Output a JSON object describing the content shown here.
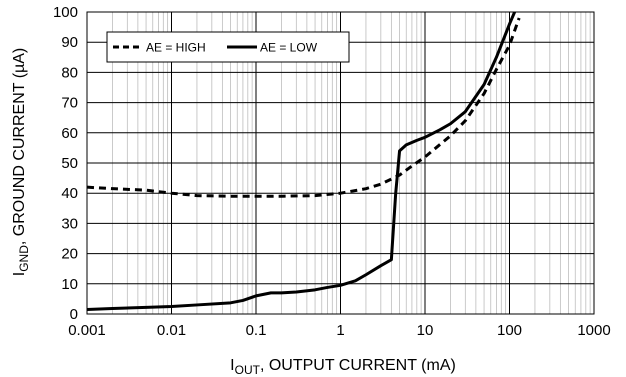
{
  "chart_data": {
    "type": "line",
    "xscale": "log",
    "xlim": [
      0.001,
      1000
    ],
    "ylim": [
      0,
      100
    ],
    "xticks": [
      0.001,
      0.01,
      0.1,
      1,
      10,
      100,
      1000
    ],
    "xtick_labels": [
      "0.001",
      "0.01",
      "0.1",
      "1",
      "10",
      "100",
      "1000"
    ],
    "yticks": [
      0,
      10,
      20,
      30,
      40,
      50,
      60,
      70,
      80,
      90,
      100
    ],
    "ytick_labels": [
      "0",
      "10",
      "20",
      "30",
      "40",
      "50",
      "60",
      "70",
      "80",
      "90",
      "100"
    ],
    "xlabel": {
      "prefix": "I",
      "sub": "OUT",
      "rest": ", OUTPUT CURRENT (mA)"
    },
    "ylabel": {
      "prefix": "I",
      "sub": "GND",
      "rest": ", GROUND CURRENT (µA)"
    },
    "grid": true,
    "legend_position": "top-left",
    "series": [
      {
        "name": "AE = HIGH",
        "style": "dashed",
        "x": [
          0.001,
          0.002,
          0.005,
          0.01,
          0.02,
          0.05,
          0.1,
          0.2,
          0.5,
          1,
          2,
          3,
          5,
          7,
          10,
          20,
          30,
          50,
          70,
          100,
          130
        ],
        "y": [
          42,
          41.5,
          41,
          40,
          39.2,
          39,
          39,
          39,
          39.2,
          40,
          41.5,
          43,
          46,
          49,
          52,
          59,
          64,
          73,
          81,
          89,
          98
        ]
      },
      {
        "name": "AE = LOW",
        "style": "solid",
        "x": [
          0.001,
          0.002,
          0.005,
          0.01,
          0.02,
          0.05,
          0.07,
          0.1,
          0.15,
          0.2,
          0.3,
          0.5,
          0.7,
          1,
          1.5,
          2,
          3,
          4,
          4.5,
          5,
          6,
          8,
          10,
          15,
          20,
          30,
          50,
          70,
          100,
          115
        ],
        "y": [
          1.5,
          1.8,
          2.2,
          2.5,
          3,
          3.7,
          4.5,
          6,
          7,
          7,
          7.3,
          8,
          8.8,
          9.5,
          11,
          13,
          16,
          18,
          40,
          54,
          56,
          57.5,
          58.5,
          61,
          63,
          67,
          76,
          85,
          96,
          100
        ]
      }
    ]
  }
}
